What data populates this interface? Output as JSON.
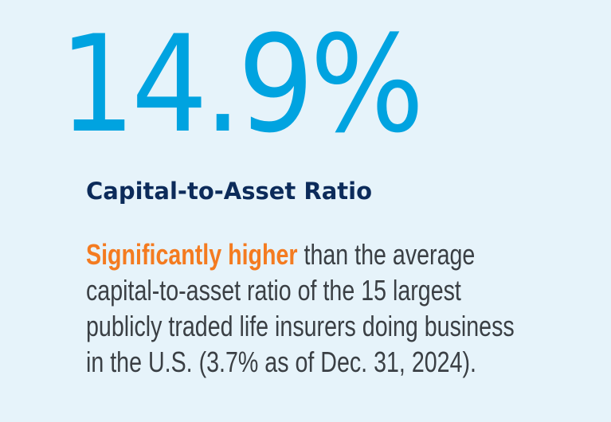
{
  "stat": {
    "value": "14.9%",
    "label": "Capital-to-Asset Ratio"
  },
  "description": {
    "highlight": "Significantly higher",
    "line1_rest": " than the average",
    "line2": "capital-to-asset ratio of the 15 largest",
    "line3": "publicly traded life insurers doing business",
    "line4": "in the U.S. (3.7% as of Dec. 31, 2024)."
  },
  "colors": {
    "background": "#e6f3fa",
    "value": "#00a3e0",
    "label": "#0c2b5a",
    "highlight": "#f47b20",
    "body_text": "#3a3f44"
  }
}
